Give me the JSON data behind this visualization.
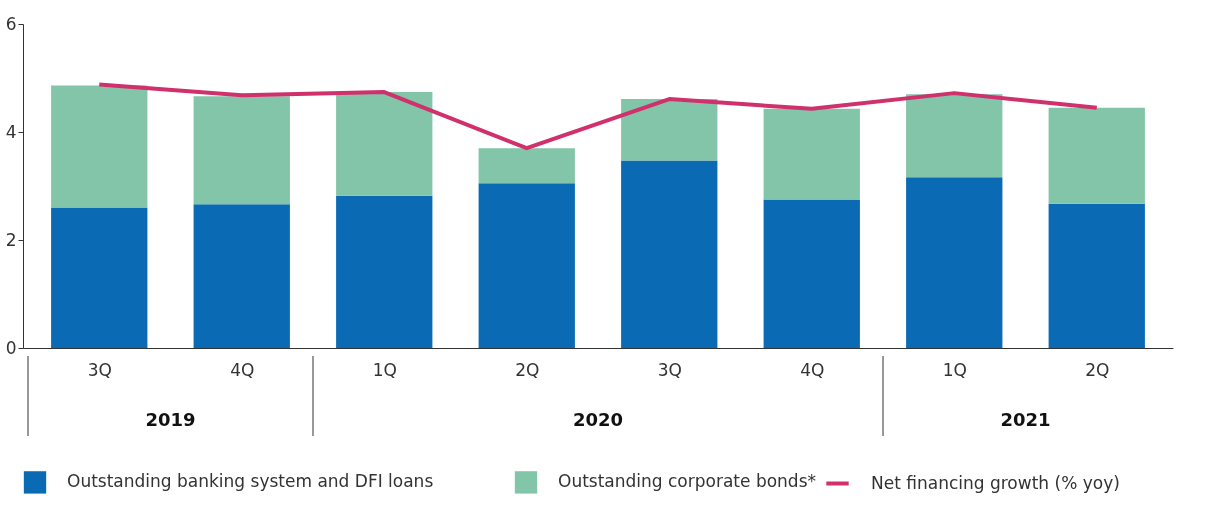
{
  "chart_data": {
    "type": "bar",
    "stacked": true,
    "categories": [
      "3Q",
      "4Q",
      "1Q",
      "2Q",
      "3Q",
      "4Q",
      "1Q",
      "2Q"
    ],
    "series": [
      {
        "name": "Outstanding banking system and DFI loans",
        "color": "#0a6ab3",
        "values": [
          2.6,
          2.66,
          2.82,
          3.05,
          3.47,
          2.75,
          3.16,
          2.67
        ]
      },
      {
        "name": "Outstanding corporate bonds*",
        "color": "#82c5a8",
        "values": [
          2.26,
          2.0,
          1.92,
          0.65,
          1.14,
          1.68,
          1.54,
          1.78
        ]
      },
      {
        "name": "Net financing growth (% yoy)",
        "color": "#d0306b",
        "type": "line",
        "marker": "none",
        "values": [
          4.88,
          4.68,
          4.74,
          3.7,
          4.61,
          4.43,
          4.72,
          4.45
        ]
      }
    ],
    "annotations": [
      "2019",
      "2020",
      "2021"
    ],
    "ylim": [
      0,
      6
    ],
    "yticks": [
      0,
      2,
      4,
      6
    ],
    "grid": false,
    "legend": "bottom"
  }
}
